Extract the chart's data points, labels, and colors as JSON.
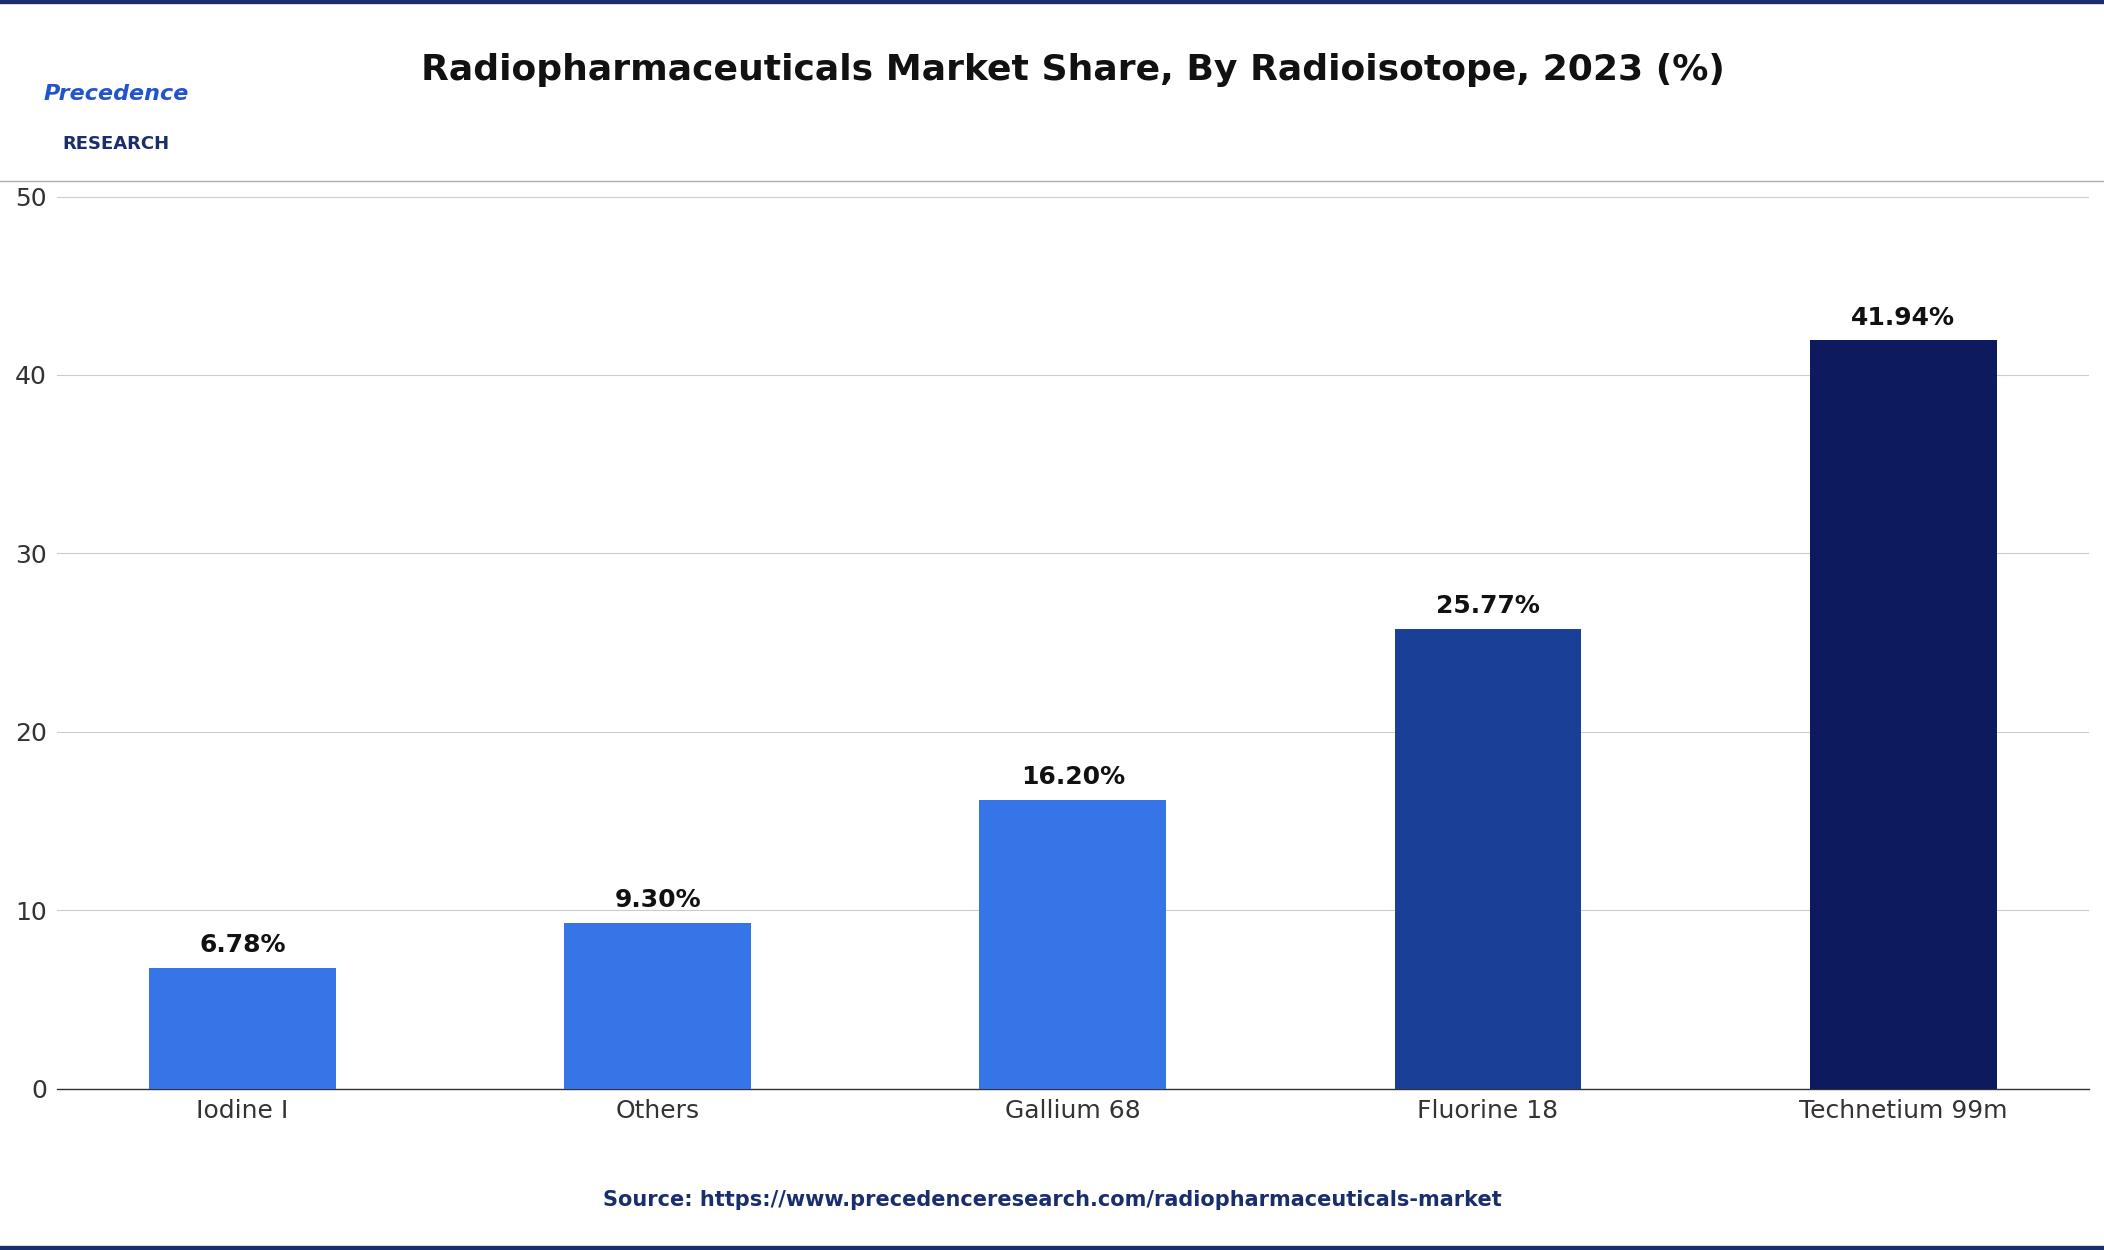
{
  "title": "Radiopharmaceuticals Market Share, By Radioisotope, 2023 (%)",
  "categories": [
    "Iodine I",
    "Others",
    "Gallium 68",
    "Fluorine 18",
    "Technetium 99m"
  ],
  "values": [
    6.78,
    9.3,
    16.2,
    25.77,
    41.94
  ],
  "labels": [
    "6.78%",
    "9.30%",
    "16.20%",
    "25.77%",
    "41.94%"
  ],
  "bar_colors": [
    "#3575e8",
    "#3575e8",
    "#3575e8",
    "#1a3f96",
    "#0d1a5e"
  ],
  "yticks": [
    0,
    10,
    20,
    30,
    40,
    50
  ],
  "ylim": [
    0,
    55
  ],
  "source_text": "Source: https://www.precedenceresearch.com/radiopharmaceuticals-market",
  "title_fontsize": 26,
  "label_fontsize": 18,
  "tick_fontsize": 18,
  "source_fontsize": 15,
  "bar_width": 0.45,
  "background_color": "#ffffff",
  "border_color": "#1a2e6e",
  "grid_color": "#cccccc",
  "logo_text_1": "Precedence",
  "logo_text_2": "RESEARCH",
  "source_color": "#1a2e6e"
}
